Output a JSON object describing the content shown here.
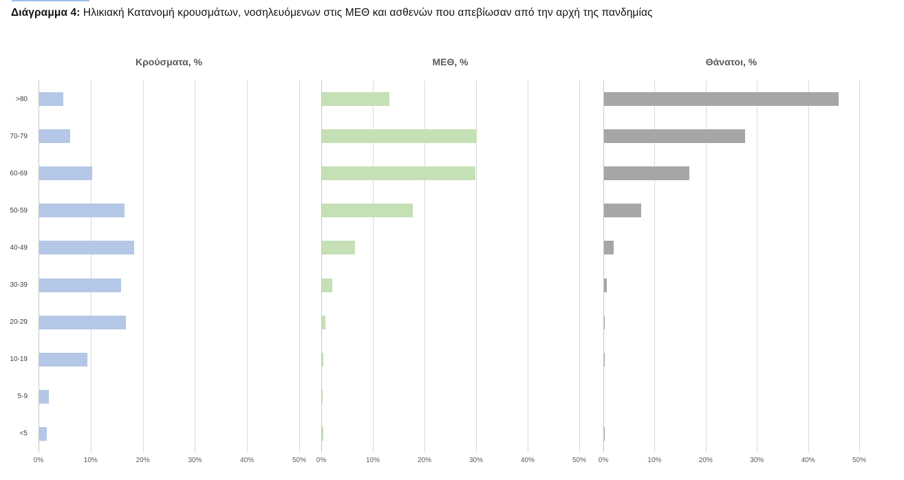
{
  "page": {
    "title_label": "Διάγραμμα 4",
    "title_separator": ": ",
    "title_text": "Ηλικιακή Κατανομή κρουσμάτων, νοσηλευόμενων στις ΜΕΘ και ασθενών που απεβίωσαν από την αρχή της πανδημίας",
    "accent_line_color": "#9dc3e6"
  },
  "colors": {
    "cases_bar": "#b4c7e7",
    "icu_bar": "#c5e0b4",
    "deaths_bar": "#a6a6a6",
    "gridline": "#d9d9d9",
    "panel_title_text": "#595959",
    "tick_text": "#595959"
  },
  "chart_data": [
    {
      "type": "bar",
      "orientation": "horizontal",
      "title": "Κρούσματα, %",
      "categories": [
        ">80",
        "70-79",
        "60-69",
        "50-59",
        "40-49",
        "30-39",
        "20-29",
        "10-19",
        "5-9",
        "<5"
      ],
      "values": [
        4.6,
        6.0,
        10.1,
        16.4,
        18.2,
        15.7,
        16.6,
        9.3,
        1.9,
        1.5
      ],
      "bar_color": "#b4c7e7",
      "xlim": [
        0,
        50
      ],
      "xticks": [
        "0%",
        "10%",
        "20%",
        "30%",
        "40%",
        "50%"
      ],
      "grid": true,
      "legend": "none"
    },
    {
      "type": "bar",
      "orientation": "horizontal",
      "title": "ΜΕΘ, %",
      "categories": [
        ">80",
        "70-79",
        "60-69",
        "50-59",
        "40-49",
        "30-39",
        "20-29",
        "10-19",
        "5-9",
        "<5"
      ],
      "values": [
        13.0,
        30.0,
        29.7,
        17.6,
        6.4,
        2.0,
        0.6,
        0.3,
        0.1,
        0.2
      ],
      "bar_color": "#c5e0b4",
      "xlim": [
        0,
        50
      ],
      "xticks": [
        "0%",
        "10%",
        "20%",
        "30%",
        "40%",
        "50%"
      ],
      "grid": true,
      "legend": "none"
    },
    {
      "type": "bar",
      "orientation": "horizontal",
      "title": "Θάνατοι, %",
      "categories": [
        ">80",
        "70-79",
        "60-69",
        "50-59",
        "40-49",
        "30-39",
        "20-29",
        "10-19",
        "5-9",
        "<5"
      ],
      "values": [
        45.8,
        27.6,
        16.7,
        7.3,
        1.9,
        0.6,
        0.2,
        0.2,
        0.0,
        0.1
      ],
      "bar_color": "#a6a6a6",
      "xlim": [
        0,
        50
      ],
      "xticks": [
        "0%",
        "10%",
        "20%",
        "30%",
        "40%",
        "50%"
      ],
      "grid": true,
      "legend": "none"
    }
  ]
}
